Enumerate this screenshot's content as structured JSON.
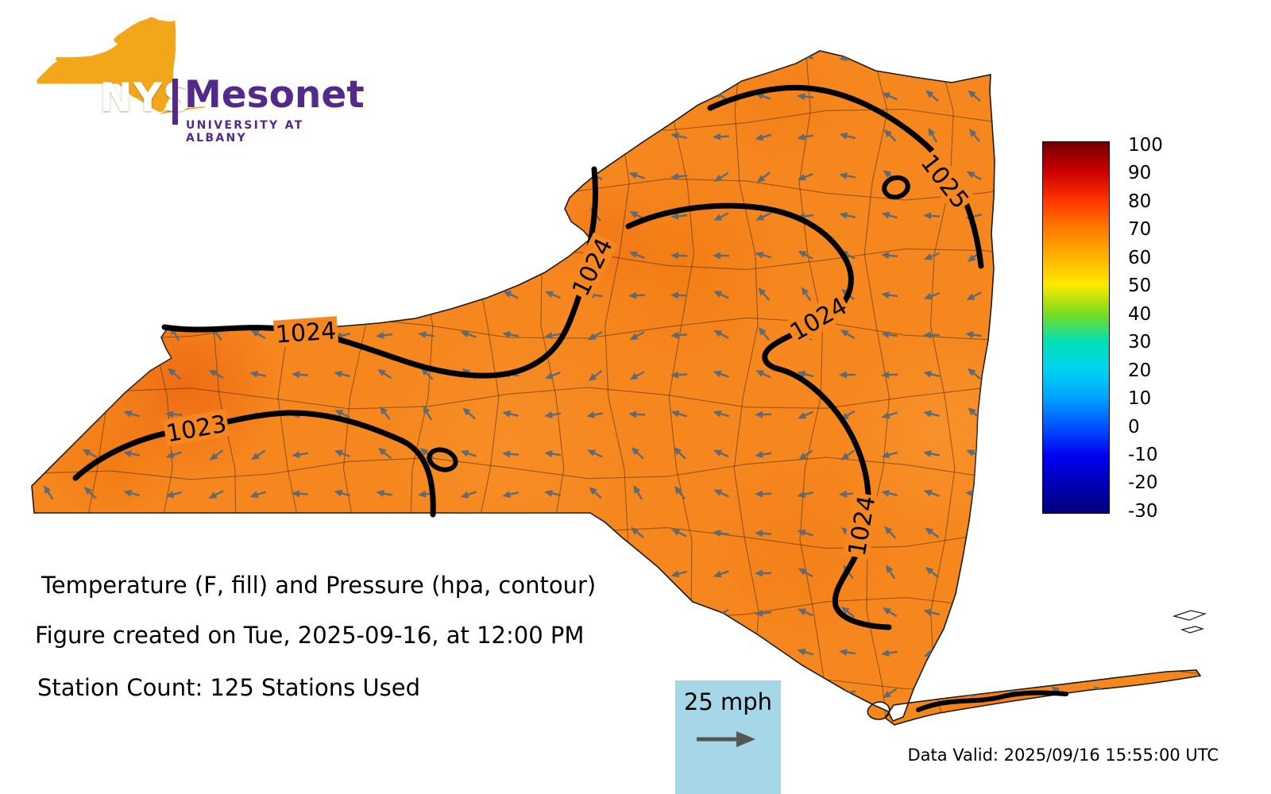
{
  "logo": {
    "nys": "NYS",
    "mesonet": "Mesonet",
    "university": "UNIVERSITY AT ALBANY"
  },
  "annotations": {
    "title": "Temperature (F, fill) and Pressure (hpa, contour)",
    "created": "Figure created on Tue, 2025-09-16, at 12:00 PM",
    "stations": "Station Count: 125 Stations Used",
    "data_valid": "Data Valid: 2025/09/16 15:55:00 UTC"
  },
  "wind_legend": {
    "label": "25 mph"
  },
  "colorbar": {
    "ticks": [
      "100",
      "90",
      "80",
      "70",
      "60",
      "50",
      "40",
      "30",
      "20",
      "10",
      "0",
      "-10",
      "-20",
      "-30"
    ],
    "gradient": [
      "#730000",
      "#C80000",
      "#FF3000",
      "#FF7A00",
      "#FFB100",
      "#FFEA00",
      "#7CDC1E",
      "#00E0B4",
      "#00D2F0",
      "#00A0FF",
      "#0050FF",
      "#0000F0",
      "#0000B4",
      "#000078"
    ]
  },
  "map": {
    "base_fill": "#F6871F",
    "arrow_color": "#5f6a72",
    "contour_color": "#000000",
    "contour_labels": [
      {
        "value": "1023"
      },
      {
        "value": "1024"
      },
      {
        "value": "1024"
      },
      {
        "value": "1024"
      },
      {
        "value": "1024"
      },
      {
        "value": "1025"
      }
    ]
  },
  "chart_data": {
    "type": "heatmap",
    "title": "Temperature (F, fill) and Pressure (hpa, contour)",
    "region": "New York State",
    "colorbar_ticks": [
      100,
      90,
      80,
      70,
      60,
      50,
      40,
      30,
      20,
      10,
      0,
      -10,
      -20,
      -30
    ],
    "colorbar_range": [
      -30,
      100
    ],
    "pressure_contour_values_hpa": [
      1023,
      1024,
      1024,
      1024,
      1024,
      1025
    ],
    "wind_reference_mph": 25,
    "station_count": 125
  }
}
